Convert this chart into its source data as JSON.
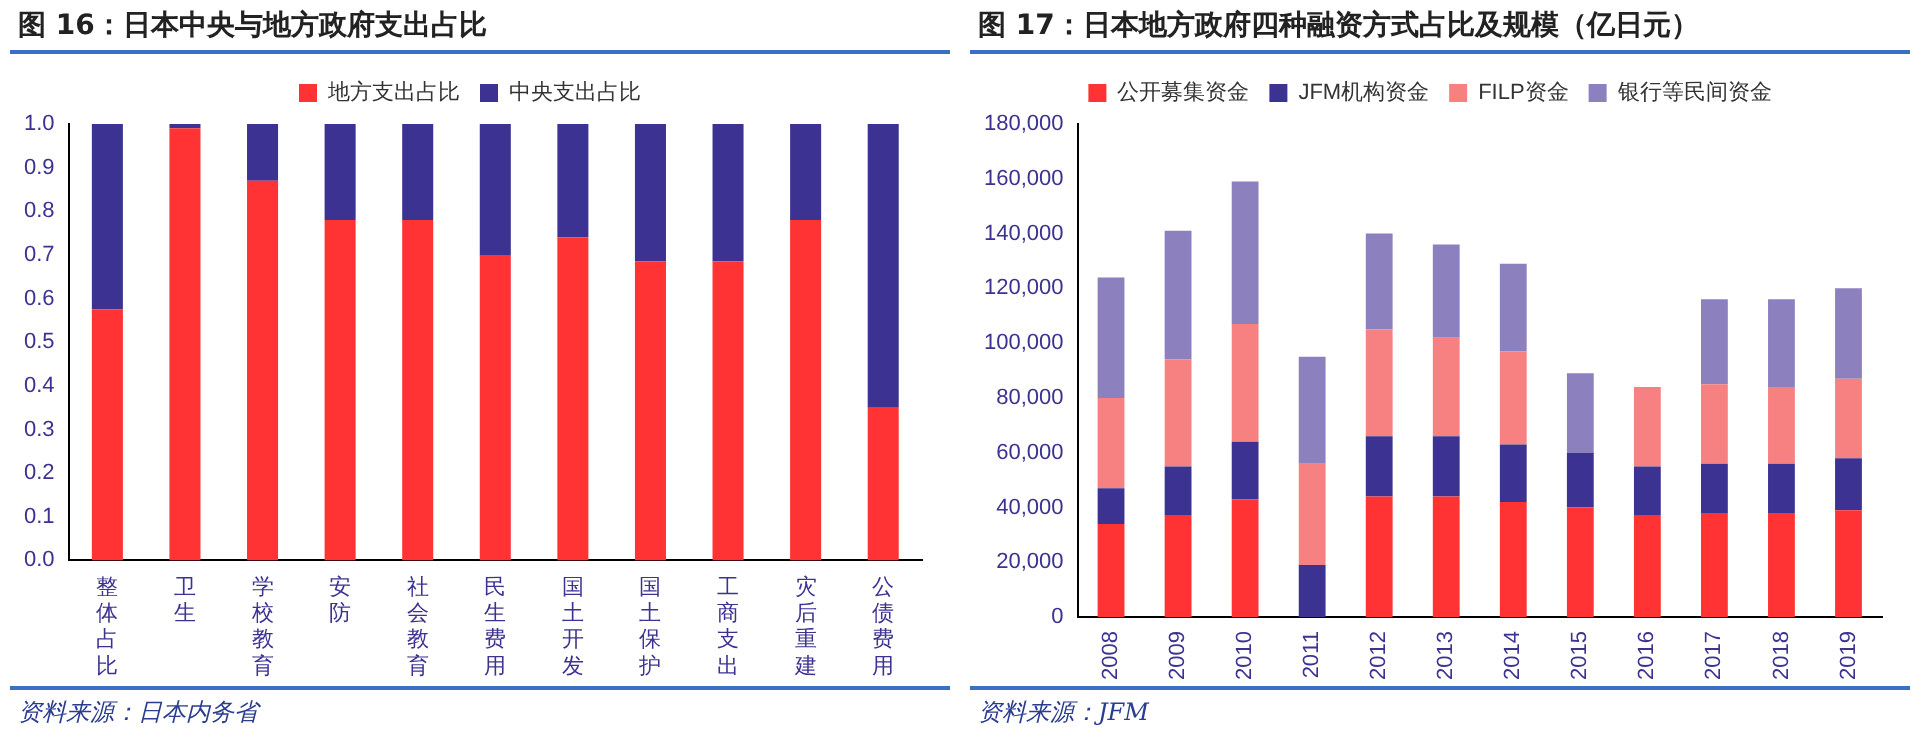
{
  "chart_data": [
    {
      "type": "bar",
      "title": "图 16：日本中央与地方政府支出占比",
      "stacked": true,
      "legend": "top",
      "grid": false,
      "categories": [
        "整体占比",
        "卫生",
        "学校教育",
        "安防",
        "社会教育",
        "民生费用",
        "国土开发",
        "国土保护",
        "工商支出",
        "灾后重建",
        "公债费用"
      ],
      "series": [
        {
          "name": "地方支出占比",
          "color": "#ff3333",
          "values": [
            0.575,
            0.99,
            0.87,
            0.78,
            0.78,
            0.7,
            0.74,
            0.685,
            0.685,
            0.78,
            0.35
          ]
        },
        {
          "name": "中央支出占比",
          "color": "#3b3291",
          "values": [
            0.425,
            0.01,
            0.13,
            0.22,
            0.22,
            0.3,
            0.26,
            0.315,
            0.315,
            0.22,
            0.65
          ]
        }
      ],
      "ylim": [
        0,
        1
      ],
      "yticks": [
        {
          "value": 0,
          "label": "0.0"
        },
        {
          "value": 0.1,
          "label": "0.1"
        },
        {
          "value": 0.2,
          "label": "0.2"
        },
        {
          "value": 0.3,
          "label": "0.3"
        },
        {
          "value": 0.4,
          "label": "0.4"
        },
        {
          "value": 0.5,
          "label": "0.5"
        },
        {
          "value": 0.6,
          "label": "0.6"
        },
        {
          "value": 0.7,
          "label": "0.7"
        },
        {
          "value": 0.8,
          "label": "0.8"
        },
        {
          "value": 0.9,
          "label": "0.9"
        },
        {
          "value": 1,
          "label": "1.0"
        }
      ],
      "annotations": [
        "资料来源：日本内务省"
      ]
    },
    {
      "type": "bar",
      "title": "图 17：日本地方政府四种融资方式占比及规模（亿日元）",
      "stacked": true,
      "legend": "top",
      "grid": false,
      "categories": [
        "2008",
        "2009",
        "2010",
        "2011",
        "2012",
        "2013",
        "2014",
        "2015",
        "2016",
        "2017",
        "2018",
        "2019"
      ],
      "series": [
        {
          "name": "公开募集资金",
          "color": "#ff3333",
          "values": [
            34000,
            37000,
            43000,
            0,
            44000,
            44000,
            42000,
            40000,
            37000,
            38000,
            38000,
            39000
          ]
        },
        {
          "name": "JFM机构资金",
          "color": "#3b3291",
          "values": [
            13000,
            18000,
            21000,
            19000,
            22000,
            22000,
            21000,
            20000,
            18000,
            18000,
            18000,
            19000
          ]
        },
        {
          "name": "FILP资金",
          "color": "#f78080",
          "values": [
            33000,
            39000,
            43000,
            37000,
            39000,
            36000,
            34000,
            0,
            29000,
            29000,
            28000,
            29000
          ]
        },
        {
          "name": "银行等民间资金",
          "color": "#8c80be",
          "values": [
            44000,
            47000,
            52000,
            39000,
            35000,
            34000,
            32000,
            29000,
            0,
            31000,
            32000,
            33000
          ]
        }
      ],
      "ylim": [
        0,
        180000
      ],
      "yticks": [
        0,
        {
          "value": 20000,
          "label": "20,000"
        },
        {
          "value": 40000,
          "label": "40,000"
        },
        {
          "value": 60000,
          "label": "60,000"
        },
        {
          "value": 80000,
          "label": "80,000"
        },
        {
          "value": 100000,
          "label": "100,000"
        },
        {
          "value": 120000,
          "label": "120,000"
        },
        {
          "value": 140000,
          "label": "140,000"
        },
        {
          "value": 160000,
          "label": "160,000"
        },
        {
          "value": 180000,
          "label": "180,000"
        }
      ],
      "annotations": [
        "资料来源：JFM"
      ]
    }
  ]
}
